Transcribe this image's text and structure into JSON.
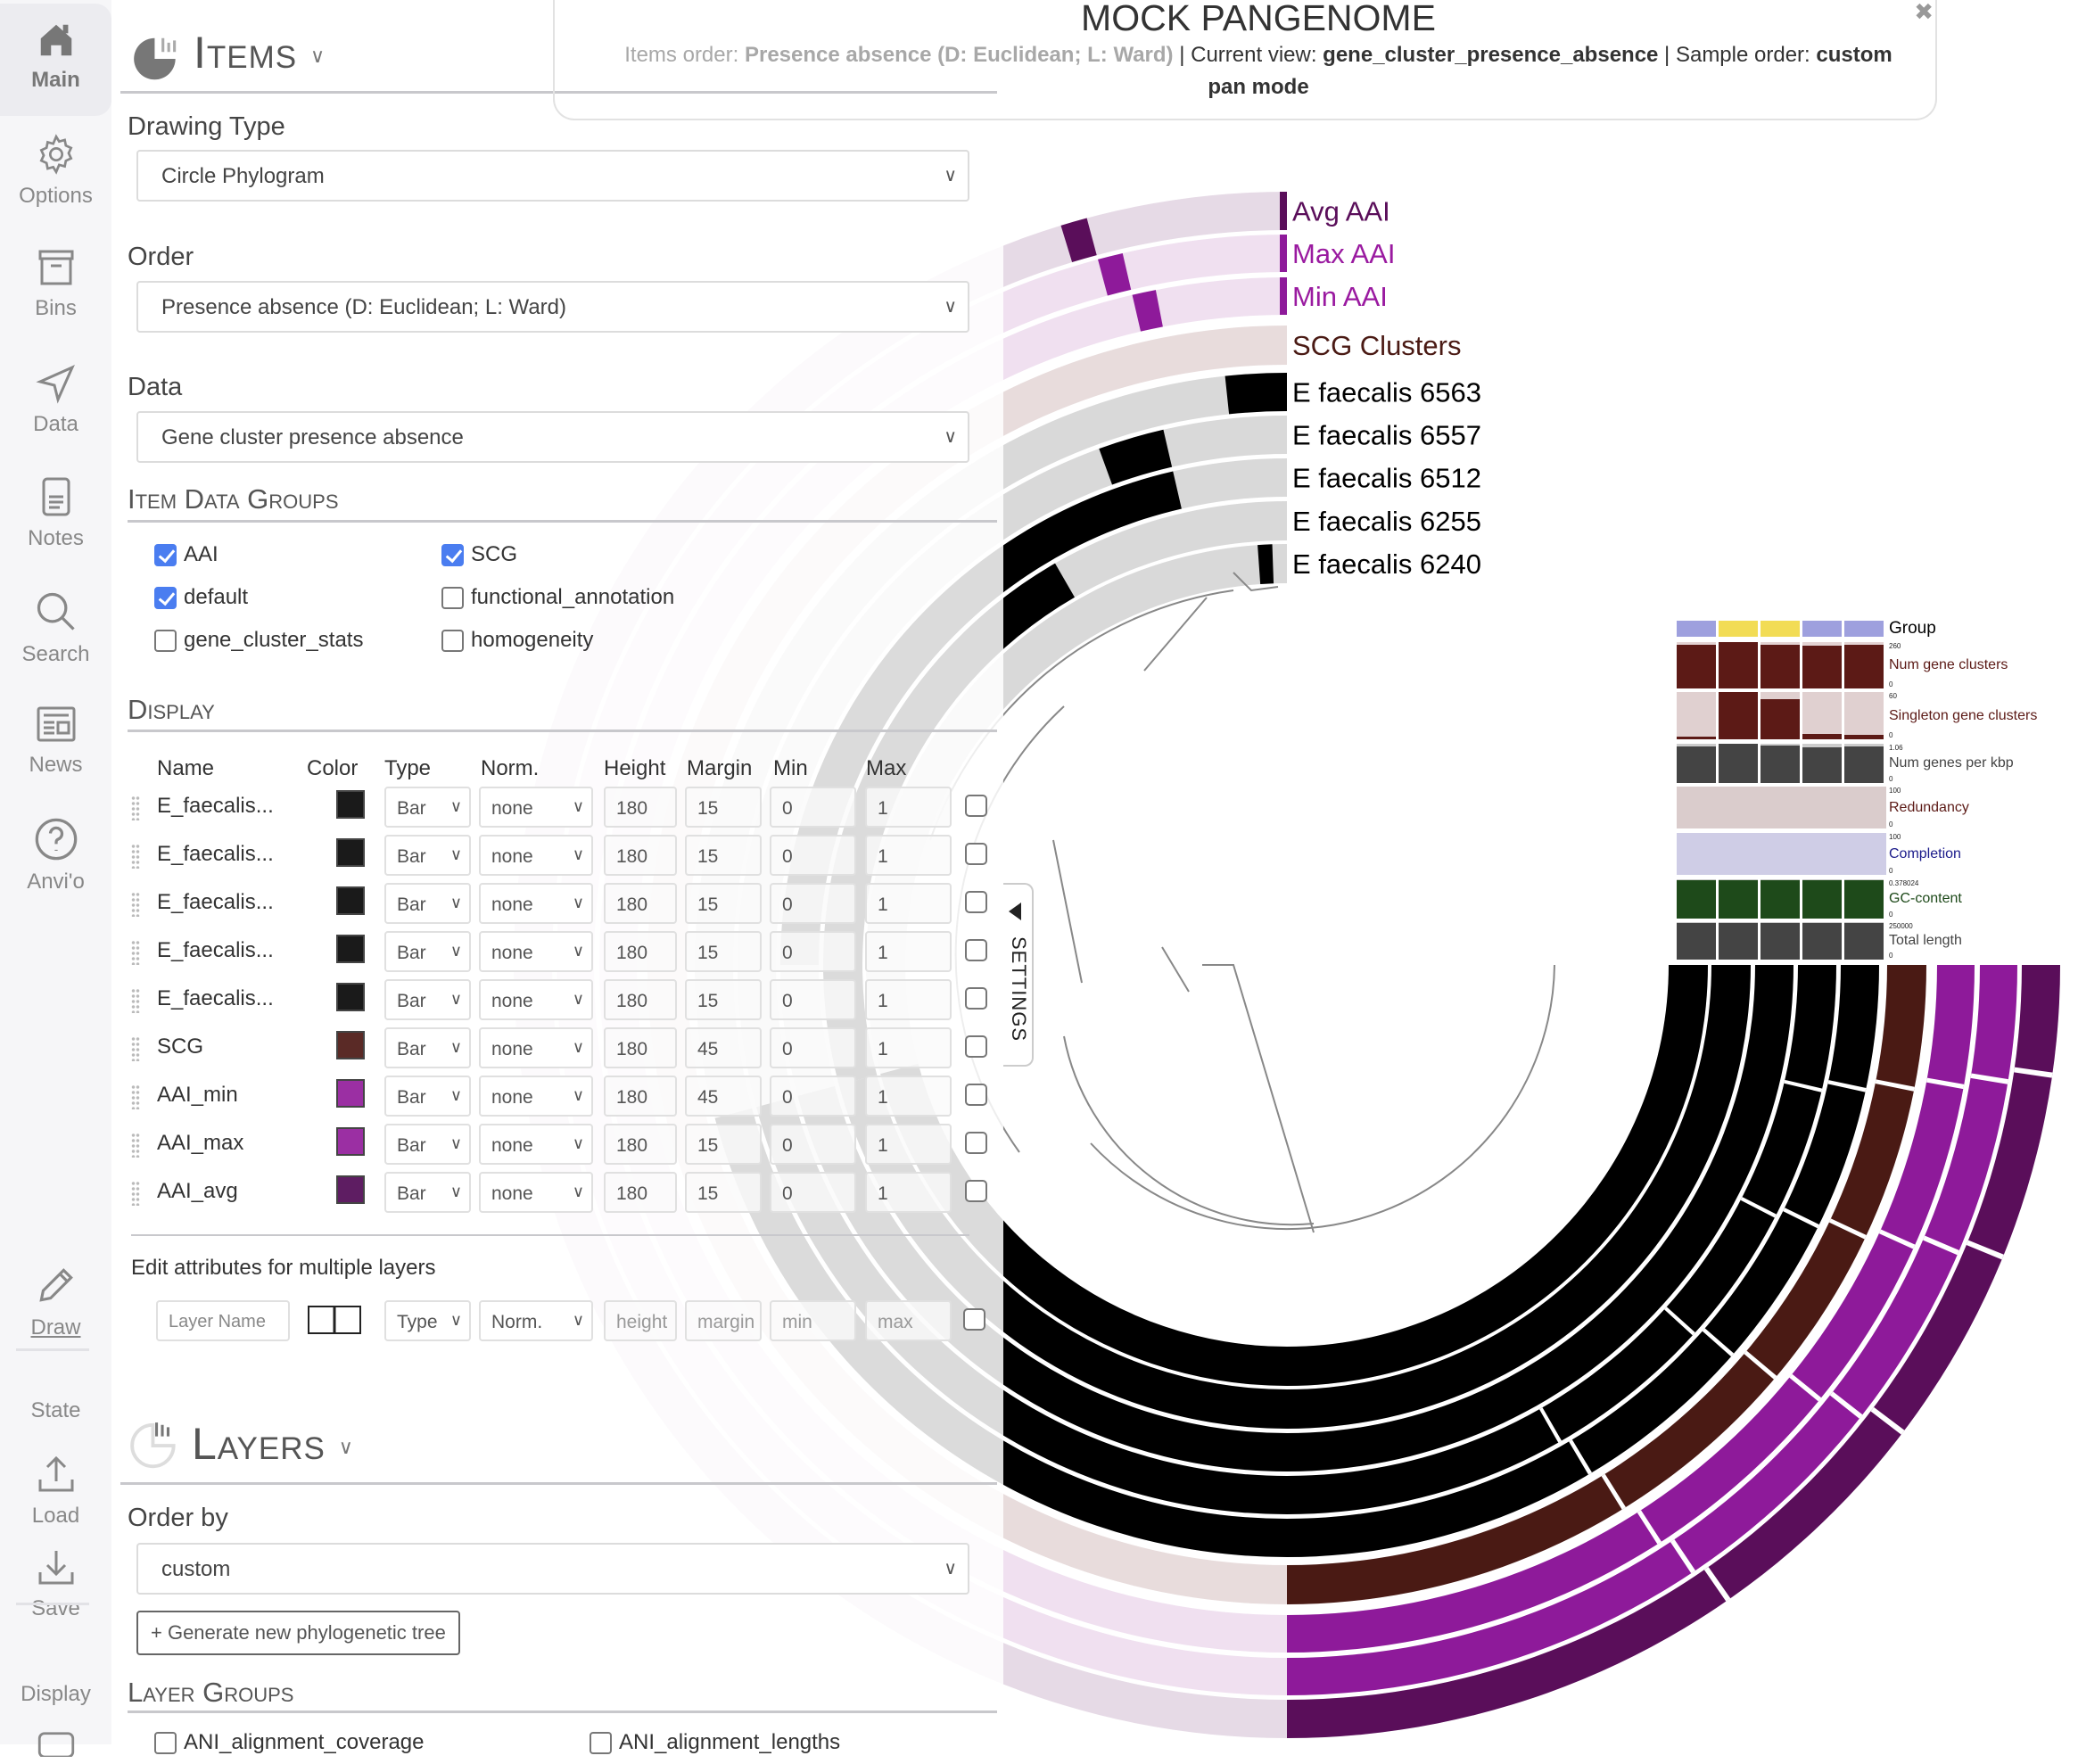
{
  "title": {
    "name": "MOCK PANGENOME",
    "items_order_label": "Items order: ",
    "items_order_value": "Presence absence (D: Euclidean; L: Ward)",
    "current_view_label": " | Current view: ",
    "current_view_value": "gene_cluster_presence_absence",
    "sample_order_label": " | Sample order: ",
    "sample_order_value": "custom",
    "mode": "pan mode",
    "close_icon": "close-icon"
  },
  "nav": {
    "main": "Main",
    "options": "Options",
    "bins": "Bins",
    "data": "Data",
    "notes": "Notes",
    "search": "Search",
    "news": "News",
    "anvio": "Anvi'o",
    "draw": "Draw",
    "state": "State",
    "load": "Load",
    "save": "Save",
    "display": "Display"
  },
  "items": {
    "header": "Items",
    "drawing_type_label": "Drawing Type",
    "drawing_type": "Circle Phylogram",
    "order_label": "Order",
    "order": "Presence absence (D: Euclidean; L: Ward)",
    "data_label": "Data",
    "data": "Gene cluster presence absence",
    "groups_header": "Item Data Groups",
    "groups": [
      {
        "label": "AAI",
        "checked": true
      },
      {
        "label": "SCG",
        "checked": true
      },
      {
        "label": "default",
        "checked": true
      },
      {
        "label": "functional_annotation",
        "checked": false
      },
      {
        "label": "gene_cluster_stats",
        "checked": false
      },
      {
        "label": "homogeneity",
        "checked": false
      }
    ]
  },
  "display": {
    "header": "Display",
    "columns": [
      "Name",
      "Color",
      "Type",
      "Norm.",
      "Height",
      "Margin",
      "Min",
      "Max"
    ],
    "rows": [
      {
        "name": "E_faecalis...",
        "color": "#1a1a1a",
        "type": "Bar",
        "norm": "none",
        "height": "180",
        "margin": "15",
        "min": "0",
        "max": "1"
      },
      {
        "name": "E_faecalis...",
        "color": "#1a1a1a",
        "type": "Bar",
        "norm": "none",
        "height": "180",
        "margin": "15",
        "min": "0",
        "max": "1"
      },
      {
        "name": "E_faecalis...",
        "color": "#1a1a1a",
        "type": "Bar",
        "norm": "none",
        "height": "180",
        "margin": "15",
        "min": "0",
        "max": "1"
      },
      {
        "name": "E_faecalis...",
        "color": "#1a1a1a",
        "type": "Bar",
        "norm": "none",
        "height": "180",
        "margin": "15",
        "min": "0",
        "max": "1"
      },
      {
        "name": "E_faecalis...",
        "color": "#1a1a1a",
        "type": "Bar",
        "norm": "none",
        "height": "180",
        "margin": "15",
        "min": "0",
        "max": "1"
      },
      {
        "name": "SCG",
        "color": "#5a2a26",
        "type": "Bar",
        "norm": "none",
        "height": "180",
        "margin": "45",
        "min": "0",
        "max": "1"
      },
      {
        "name": "AAI_min",
        "color": "#9b2fa3",
        "type": "Bar",
        "norm": "none",
        "height": "180",
        "margin": "45",
        "min": "0",
        "max": "1"
      },
      {
        "name": "AAI_max",
        "color": "#9b2fa3",
        "type": "Bar",
        "norm": "none",
        "height": "180",
        "margin": "15",
        "min": "0",
        "max": "1"
      },
      {
        "name": "AAI_avg",
        "color": "#5e1d62",
        "type": "Bar",
        "norm": "none",
        "height": "180",
        "margin": "15",
        "min": "0",
        "max": "1"
      }
    ],
    "multi_edit_label": "Edit attributes for multiple layers",
    "multi": {
      "name_ph": "Layer Name",
      "type": "Type",
      "norm": "Norm.",
      "height_ph": "height",
      "margin_ph": "margin",
      "min_ph": "min",
      "max_ph": "max"
    }
  },
  "layers": {
    "header": "Layers",
    "order_by_label": "Order by",
    "order_by": "custom",
    "generate_button": "+ Generate new phylogenetic tree",
    "groups_header": "Layer Groups",
    "groups": [
      {
        "label": "ANI_alignment_coverage",
        "checked": false
      },
      {
        "label": "ANI_alignment_lengths",
        "checked": false
      }
    ]
  },
  "settings_tab": "SETTINGS",
  "viz": {
    "ring_labels": [
      {
        "label": "Avg AAI",
        "color": "#5a0e5a"
      },
      {
        "label": "Max AAI",
        "color": "#9a1aa0"
      },
      {
        "label": "Min AAI",
        "color": "#9a1aa0"
      },
      {
        "label": "SCG Clusters",
        "color": "#4a1a14"
      },
      {
        "label": "E faecalis 6563",
        "color": "#000000"
      },
      {
        "label": "E faecalis 6557",
        "color": "#000000"
      },
      {
        "label": "E faecalis 6512",
        "color": "#000000"
      },
      {
        "label": "E faecalis 6255",
        "color": "#000000"
      },
      {
        "label": "E faecalis 6240",
        "color": "#000000"
      }
    ],
    "layer_group_colors": [
      "#9ea0de",
      "#f2dc55",
      "#f2dc55",
      "#9ea0de",
      "#9ea0de"
    ],
    "layer_bars": [
      {
        "label": "Group",
        "color": "#000000"
      },
      {
        "label": "Num gene clusters",
        "max": "260",
        "min": "0",
        "color": "#5c1a16",
        "bg": "#e3d3d3",
        "values": [
          0.94,
          1.0,
          0.94,
          0.93,
          0.94
        ]
      },
      {
        "label": "Singleton gene clusters",
        "max": "60",
        "min": "0",
        "color": "#5c1a16",
        "bg": "#e0d0d0",
        "values": [
          0.05,
          1.0,
          0.85,
          0.12,
          0.1
        ]
      },
      {
        "label": "Num genes per kbp",
        "max": "1.06",
        "min": "0",
        "color": "#444444",
        "bg": "#cccccc",
        "values": [
          0.93,
          1.0,
          0.95,
          0.92,
          0.93
        ]
      },
      {
        "label": "Redundancy",
        "max": "100",
        "min": "0",
        "color": "#5c1a16",
        "bg": "#dacccc",
        "values": [
          0,
          0,
          0,
          0,
          0
        ]
      },
      {
        "label": "Completion",
        "max": "100",
        "min": "0",
        "color": "#1a1a8a",
        "bg": "#cfcde6",
        "values": [
          0,
          0,
          0,
          0,
          0
        ]
      },
      {
        "label": "GC-content",
        "max": "0.378024",
        "min": "0",
        "color": "#1e4a1a",
        "bg": "#cccccc",
        "values": [
          0.98,
          0.98,
          0.97,
          0.98,
          0.98
        ]
      },
      {
        "label": "Total length",
        "max": "250000",
        "min": "0",
        "color": "#444444",
        "bg": "#cccccc",
        "values": [
          0.98,
          0.98,
          0.98,
          0.98,
          0.98
        ]
      }
    ]
  }
}
